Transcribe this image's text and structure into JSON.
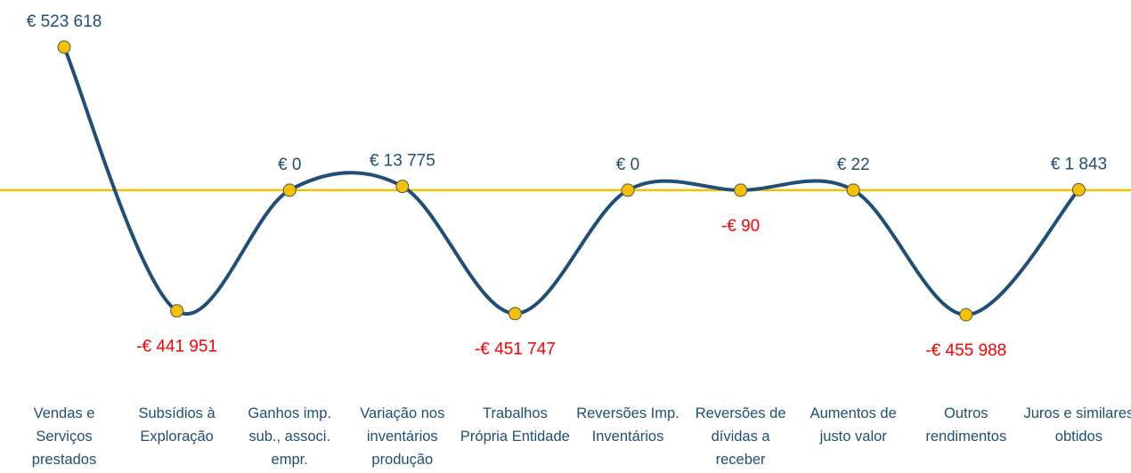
{
  "chart_data": {
    "type": "line",
    "categories": [
      "Vendas e Serviços prestados",
      "Subsídios à Exploração",
      "Ganhos imp. sub., associ. empr.",
      "Variação nos inventários produção",
      "Trabalhos Própria Entidade",
      "Reversões Imp. Inventários",
      "Reversões de dívidas a receber",
      "Aumentos de justo valor",
      "Outros rendimentos",
      "Juros e similares obtidos"
    ],
    "series": [
      {
        "color": "#1f4e79",
        "values": [
          523618,
          -441951,
          0,
          13775,
          -451747,
          0,
          -90,
          22,
          -455988,
          1843
        ],
        "value_labels": [
          "€ 523 618",
          "-€ 441 951",
          "€ 0",
          "€ 13 775",
          "-€ 451 747",
          "€ 0",
          "-€ 90",
          "€ 22",
          "-€ 455 988",
          "€ 1 843"
        ]
      }
    ],
    "marker_color": "#f5c000",
    "zero_line_color": "#f5c000",
    "positive_label_color": "#1f4e79",
    "negative_label_color": "#ff0000"
  }
}
